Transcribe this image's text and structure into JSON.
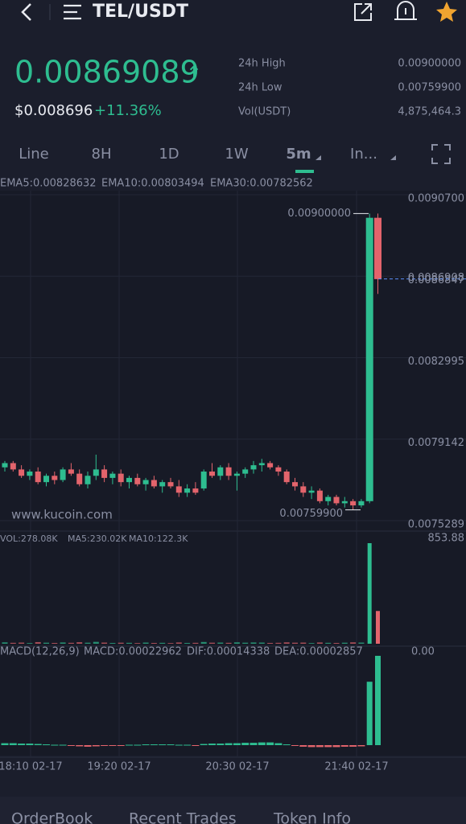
{
  "header": {
    "title": "TEL/USDT"
  },
  "ticker": {
    "price": "0.00869089",
    "arrow": "↑",
    "fiat": "$0.008696",
    "change": "+11.36%",
    "stats": [
      {
        "label": "24h High",
        "value": "0.00900000"
      },
      {
        "label": "24h Low",
        "value": "0.00759900"
      },
      {
        "label": "Vol(USDT)",
        "value": "4,875,464.3"
      }
    ]
  },
  "tabs": [
    "Line",
    "8H",
    "1D",
    "1W",
    "5m",
    "In..."
  ],
  "chart_data": {
    "type": "candlestick",
    "indicators": [
      "EMA5:0.00828632",
      "EMA10:0.00803494",
      "EMA30:0.00782562"
    ],
    "ylim": [
      0.0075289,
      0.00907
    ],
    "yticks": [
      {
        "value": 0.00907,
        "label": "0.0090700"
      },
      {
        "value": 0.0086847,
        "label": "0.0086847"
      },
      {
        "value": 0.0082995,
        "label": "0.0082995"
      },
      {
        "value": 0.0079142,
        "label": "0.0079142"
      },
      {
        "value": 0.0075289,
        "label": "0.0075289"
      }
    ],
    "current_price": {
      "value": 0.0086908,
      "label": "0.0086908"
    },
    "high_marker": {
      "value": 0.009,
      "label": "0.00900000"
    },
    "low_marker": {
      "value": 0.007599,
      "label": "0.00759900"
    },
    "watermark": "www.kucoin.com",
    "x_labels": [
      "18:10 02-17",
      "19:20 02-17",
      "20:30 02-17",
      "21:40 02-17"
    ],
    "ohlc": [
      [
        0.0078,
        0.00783,
        0.00778,
        0.00782
      ],
      [
        0.00782,
        0.00783,
        0.00778,
        0.00779
      ],
      [
        0.00779,
        0.00781,
        0.00775,
        0.00776
      ],
      [
        0.00776,
        0.00779,
        0.00774,
        0.00778
      ],
      [
        0.00778,
        0.0078,
        0.00772,
        0.00773
      ],
      [
        0.00773,
        0.00777,
        0.00771,
        0.00776
      ],
      [
        0.00776,
        0.00778,
        0.00772,
        0.00774
      ],
      [
        0.00774,
        0.0078,
        0.00773,
        0.00779
      ],
      [
        0.00779,
        0.00782,
        0.00776,
        0.00777
      ],
      [
        0.00777,
        0.00779,
        0.00771,
        0.00772
      ],
      [
        0.00772,
        0.00778,
        0.0077,
        0.00776
      ],
      [
        0.00776,
        0.00786,
        0.00774,
        0.00779
      ],
      [
        0.00779,
        0.00781,
        0.00773,
        0.00775
      ],
      [
        0.00775,
        0.00778,
        0.00772,
        0.00777
      ],
      [
        0.00777,
        0.00779,
        0.00771,
        0.00773
      ],
      [
        0.00773,
        0.00776,
        0.0077,
        0.00775
      ],
      [
        0.00775,
        0.00777,
        0.00771,
        0.00772
      ],
      [
        0.00772,
        0.00775,
        0.00769,
        0.00774
      ],
      [
        0.00774,
        0.00776,
        0.0077,
        0.00771
      ],
      [
        0.00771,
        0.00774,
        0.00768,
        0.00773
      ],
      [
        0.00773,
        0.00775,
        0.0077,
        0.00771
      ],
      [
        0.00771,
        0.00774,
        0.00766,
        0.00768
      ],
      [
        0.00768,
        0.00772,
        0.00766,
        0.0077
      ],
      [
        0.0077,
        0.00773,
        0.00767,
        0.00768
      ],
      [
        0.0077,
        0.00779,
        0.00769,
        0.00778
      ],
      [
        0.00778,
        0.00782,
        0.00775,
        0.00776
      ],
      [
        0.00776,
        0.00781,
        0.00774,
        0.0078
      ],
      [
        0.0078,
        0.00782,
        0.00774,
        0.00776
      ],
      [
        0.00776,
        0.00778,
        0.00769,
        0.00777
      ],
      [
        0.00777,
        0.0078,
        0.00775,
        0.00779
      ],
      [
        0.00779,
        0.00783,
        0.00777,
        0.00781
      ],
      [
        0.00781,
        0.00784,
        0.00778,
        0.00782
      ],
      [
        0.00782,
        0.00783,
        0.00779,
        0.0078
      ],
      [
        0.0078,
        0.00781,
        0.00776,
        0.00778
      ],
      [
        0.00778,
        0.00779,
        0.00772,
        0.00773
      ],
      [
        0.00773,
        0.00775,
        0.00769,
        0.00771
      ],
      [
        0.00771,
        0.00773,
        0.00766,
        0.00768
      ],
      [
        0.00768,
        0.00771,
        0.00765,
        0.00769
      ],
      [
        0.00769,
        0.0077,
        0.00763,
        0.00764
      ],
      [
        0.00764,
        0.00767,
        0.00762,
        0.00766
      ],
      [
        0.00766,
        0.00767,
        0.00762,
        0.00763
      ],
      [
        0.00763,
        0.00766,
        0.00761,
        0.00764
      ],
      [
        0.00764,
        0.00765,
        0.007599,
        0.00762
      ],
      [
        0.00762,
        0.00765,
        0.00761,
        0.00764
      ],
      [
        0.00764,
        0.009,
        0.00763,
        0.00898
      ],
      [
        0.00898,
        0.009,
        0.00862,
        0.00869
      ]
    ],
    "volume": {
      "labels": [
        "VOL:278.08K",
        "MA5:230.02K",
        "MA10:122.3K"
      ],
      "max": 853.88,
      "values": [
        12,
        8,
        10,
        6,
        14,
        9,
        7,
        11,
        8,
        13,
        9,
        16,
        10,
        7,
        9,
        8,
        6,
        10,
        7,
        8,
        6,
        11,
        7,
        8,
        15,
        9,
        10,
        8,
        12,
        9,
        11,
        10,
        7,
        8,
        12,
        9,
        10,
        6,
        11,
        8,
        7,
        9,
        12,
        10,
        853.88,
        278.08
      ]
    },
    "macd": {
      "labels": [
        "MACD(12,26,9)",
        "MACD:0.00022962",
        "DIF:0.00014338",
        "DEA:0.00002857"
      ],
      "axis_label": "0.00",
      "hist": [
        5e-06,
        5e-06,
        4e-06,
        4e-06,
        3e-06,
        2e-06,
        1e-06,
        1e-06,
        -2e-06,
        -3e-06,
        -4e-06,
        -3e-06,
        -2e-06,
        -2e-06,
        -1e-06,
        1e-06,
        1e-06,
        2e-06,
        2e-06,
        2e-06,
        2e-06,
        1e-06,
        1e-06,
        -1e-06,
        3e-06,
        4e-06,
        4e-06,
        5e-06,
        5e-06,
        6e-06,
        6e-06,
        7e-06,
        7e-06,
        5e-06,
        2e-06,
        -2e-06,
        -4e-06,
        -5e-06,
        -5e-06,
        -5e-06,
        -5e-06,
        -4e-06,
        -4e-06,
        -3e-06,
        0.000163,
        0.00022962
      ]
    }
  },
  "bottom_tabs": [
    "OrderBook",
    "Recent Trades",
    "Token Info"
  ]
}
